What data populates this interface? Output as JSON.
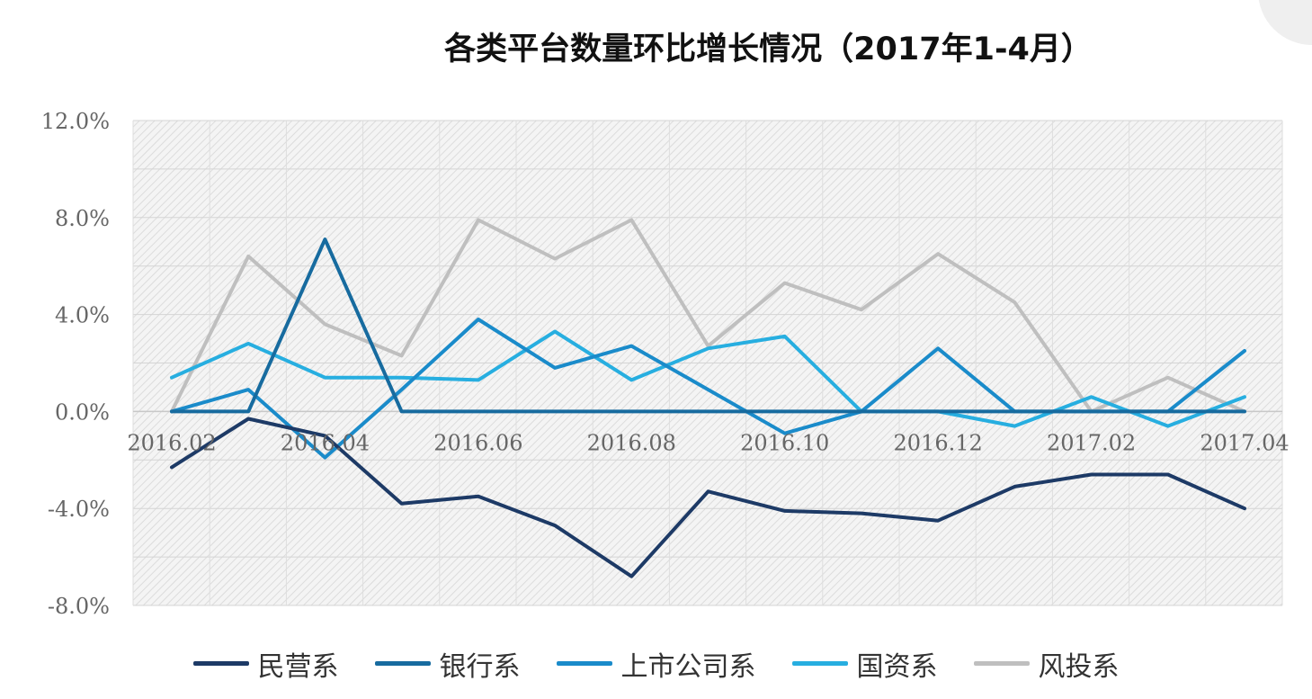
{
  "chart_data": {
    "type": "line",
    "title": "各类平台数量环比增长情况（2017年1-4月）",
    "x": [
      "2016.02",
      "2016.03",
      "2016.04",
      "2016.05",
      "2016.06",
      "2016.07",
      "2016.08",
      "2016.09",
      "2016.10",
      "2016.11",
      "2016.12",
      "2017.01",
      "2017.02",
      "2017.03",
      "2017.04"
    ],
    "x_tick_labels": [
      "2016.02",
      "2016.04",
      "2016.06",
      "2016.08",
      "2016.10",
      "2016.12",
      "2017.02",
      "2017.04"
    ],
    "y_tick_labels": [
      "12.0%",
      "8.0%",
      "4.0%",
      "0.0%",
      "-4.0%",
      "-8.0%"
    ],
    "ylim": [
      -8,
      12
    ],
    "y_unit": "%",
    "grid": true,
    "legend_position": "bottom",
    "series": [
      {
        "name": "民营系",
        "color": "#1d3a66",
        "values": [
          -2.3,
          -0.3,
          -1.0,
          -3.8,
          -3.5,
          -4.7,
          -6.8,
          -3.3,
          -4.1,
          -4.2,
          -4.5,
          -3.1,
          -2.6,
          -2.6,
          -4.0
        ]
      },
      {
        "name": "银行系",
        "color": "#176b9f",
        "values": [
          0.0,
          0.0,
          7.1,
          0.0,
          0.0,
          0.0,
          0.0,
          0.0,
          0.0,
          0.0,
          0.0,
          0.0,
          0.0,
          0.0,
          0.0
        ]
      },
      {
        "name": "上市公司系",
        "color": "#1a8bca",
        "values": [
          0.0,
          0.9,
          -1.9,
          0.9,
          3.8,
          1.8,
          2.7,
          0.9,
          -0.9,
          0.0,
          2.6,
          0.0,
          0.0,
          0.0,
          2.5
        ]
      },
      {
        "name": "国资系",
        "color": "#27aee0",
        "values": [
          1.4,
          2.8,
          1.4,
          1.4,
          1.3,
          3.3,
          1.3,
          2.6,
          3.1,
          0.0,
          0.0,
          -0.6,
          0.6,
          -0.6,
          0.6
        ]
      },
      {
        "name": "风投系",
        "color": "#bfbfbf",
        "values": [
          0.0,
          6.4,
          3.6,
          2.3,
          7.9,
          6.3,
          7.9,
          2.7,
          5.3,
          4.2,
          6.5,
          4.5,
          0.0,
          1.4,
          0.0
        ]
      }
    ]
  }
}
